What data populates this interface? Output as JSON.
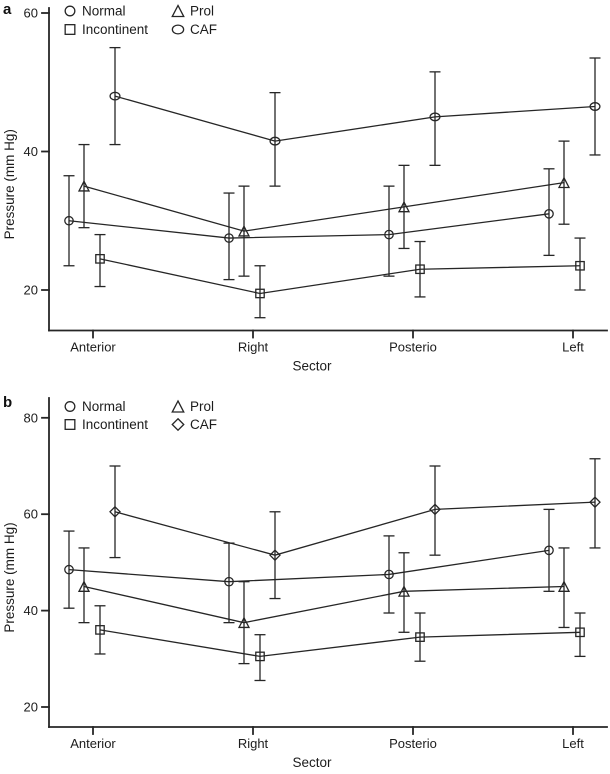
{
  "chart_data": [
    {
      "type": "line",
      "panel_label": "a",
      "xlabel": "Sector",
      "ylabel": "Pressure (mm Hg)",
      "categories": [
        "Anterior",
        "Right",
        "Posterio",
        "Left"
      ],
      "yticks": [
        60,
        40,
        20
      ],
      "ylim": [
        14,
        61
      ],
      "grid": false,
      "error_bars": true,
      "legend_position": "top-inside-two-columns",
      "series": [
        {
          "name": "Normal",
          "marker": "circle",
          "values": [
            30,
            27.5,
            28,
            31
          ],
          "err_low": [
            23.5,
            21.5,
            22,
            25
          ],
          "err_high": [
            36.5,
            34,
            35,
            37.5
          ]
        },
        {
          "name": "Incontinent",
          "marker": "square",
          "values": [
            24.5,
            19.5,
            23,
            23.5
          ],
          "err_low": [
            20.5,
            16,
            19,
            20
          ],
          "err_high": [
            28,
            23.5,
            27,
            27.5
          ]
        },
        {
          "name": "Prol",
          "marker": "triangle",
          "values": [
            35,
            28.5,
            32,
            35.5
          ],
          "err_low": [
            29,
            22,
            26,
            29.5
          ],
          "err_high": [
            41,
            35,
            38,
            41.5
          ]
        },
        {
          "name": "CAF",
          "marker": "ellipse",
          "values": [
            48,
            41.5,
            45,
            46.5
          ],
          "err_low": [
            41,
            35,
            38,
            39.5
          ],
          "err_high": [
            55,
            48.5,
            51.5,
            53.5
          ]
        }
      ]
    },
    {
      "type": "line",
      "panel_label": "b",
      "xlabel": "Sector",
      "ylabel": "Pressure (mm Hg)",
      "categories": [
        "Anterior",
        "Right",
        "Posterio",
        "Left"
      ],
      "yticks": [
        80,
        60,
        40,
        20
      ],
      "ylim": [
        18,
        82
      ],
      "grid": false,
      "error_bars": true,
      "legend_position": "top-inside-two-columns",
      "series": [
        {
          "name": "Normal",
          "marker": "circle",
          "values": [
            48.5,
            46,
            47.5,
            52.5
          ],
          "err_low": [
            40.5,
            37.5,
            39.5,
            44
          ],
          "err_high": [
            56.5,
            54,
            55.5,
            61
          ]
        },
        {
          "name": "Incontinent",
          "marker": "square",
          "values": [
            36,
            30.5,
            34.5,
            35.5
          ],
          "err_low": [
            31,
            25.5,
            29.5,
            30.5
          ],
          "err_high": [
            41,
            35,
            39.5,
            39.5
          ]
        },
        {
          "name": "Prol",
          "marker": "triangle",
          "values": [
            45,
            37.5,
            44,
            45
          ],
          "err_low": [
            37.5,
            29,
            35.5,
            36.5
          ],
          "err_high": [
            53,
            46,
            52,
            53
          ]
        },
        {
          "name": "CAF",
          "marker": "diamond",
          "values": [
            60.5,
            51.5,
            61,
            62.5
          ],
          "err_low": [
            51,
            42.5,
            51.5,
            53
          ],
          "err_high": [
            70,
            60.5,
            70,
            71.5
          ]
        }
      ]
    }
  ]
}
